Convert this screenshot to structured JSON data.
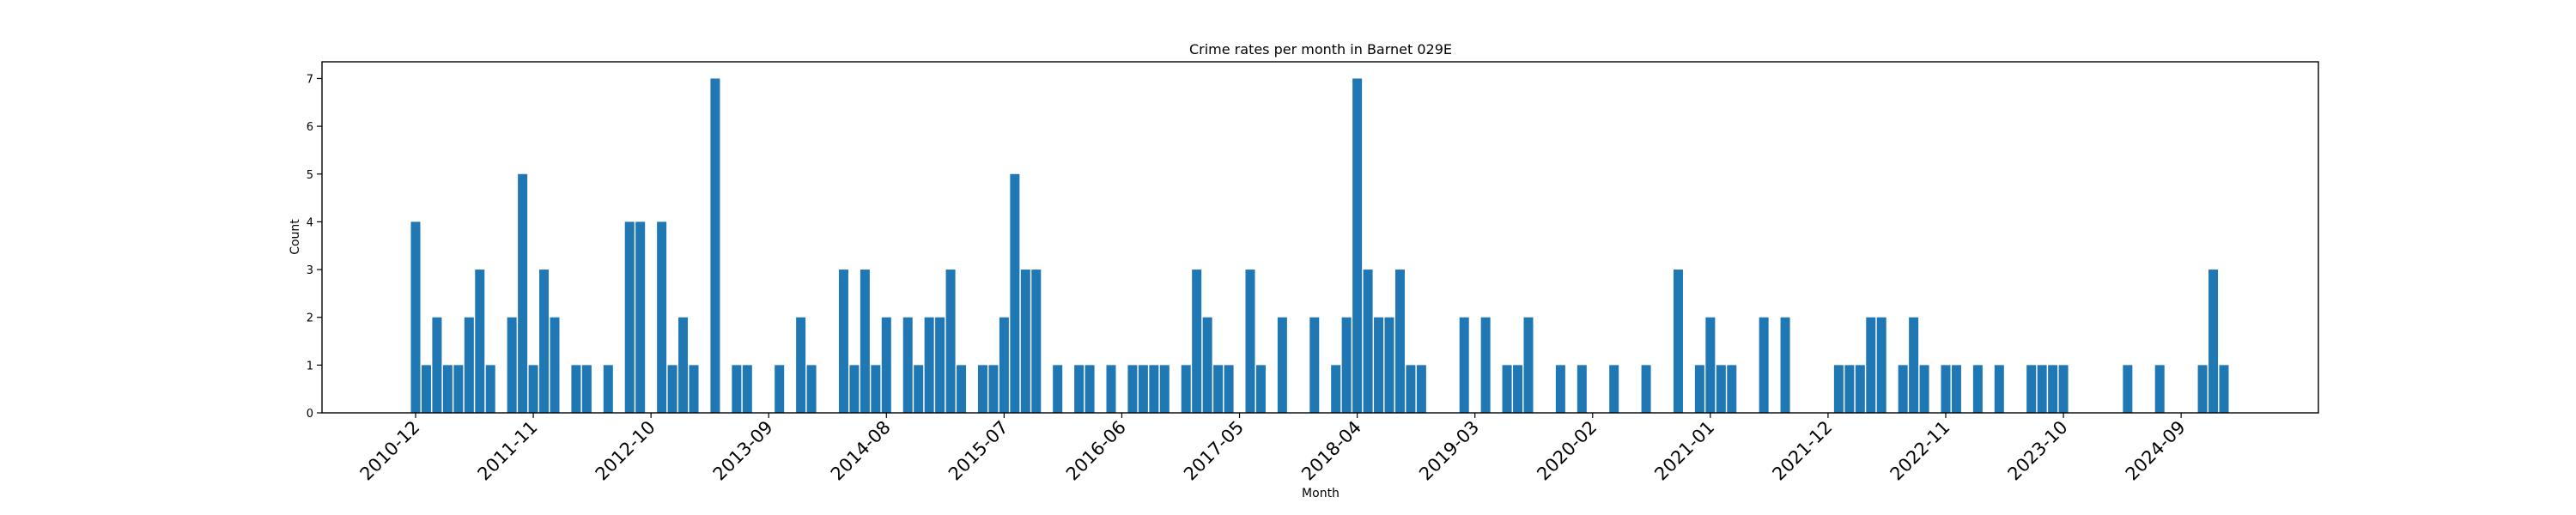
{
  "chart_data": {
    "type": "bar",
    "title": "Crime rates per month in Barnet 029E",
    "xlabel": "Month",
    "ylabel": "Count",
    "ylim": [
      0,
      7.35
    ],
    "yticks": [
      0,
      1,
      2,
      3,
      4,
      5,
      6,
      7
    ],
    "bar_color": "#1f77b4",
    "grid": false,
    "x_tick_labels": [
      "2010-12",
      "2011-11",
      "2012-10",
      "2013-09",
      "2014-08",
      "2015-07",
      "2016-06",
      "2017-05",
      "2018-04",
      "2019-03",
      "2020-02",
      "2021-01",
      "2021-12",
      "2022-11",
      "2023-10",
      "2024-09"
    ],
    "categories": [
      "2010-12",
      "2011-01",
      "2011-02",
      "2011-03",
      "2011-04",
      "2011-05",
      "2011-06",
      "2011-07",
      "2011-09",
      "2011-10",
      "2011-11",
      "2011-12",
      "2012-01",
      "2012-03",
      "2012-04",
      "2012-06",
      "2012-08",
      "2012-09",
      "2012-11",
      "2012-12",
      "2013-01",
      "2013-02",
      "2013-04",
      "2013-06",
      "2013-07",
      "2013-10",
      "2013-12",
      "2014-01",
      "2014-04",
      "2014-05",
      "2014-06",
      "2014-07",
      "2014-08",
      "2014-10",
      "2014-11",
      "2014-12",
      "2015-01",
      "2015-02",
      "2015-03",
      "2015-05",
      "2015-06",
      "2015-07",
      "2015-08",
      "2015-09",
      "2015-10",
      "2015-12",
      "2016-02",
      "2016-03",
      "2016-05",
      "2016-07",
      "2016-08",
      "2016-09",
      "2016-10",
      "2016-12",
      "2017-01",
      "2017-02",
      "2017-03",
      "2017-04",
      "2017-06",
      "2017-07",
      "2017-09",
      "2017-12",
      "2018-02",
      "2018-03",
      "2018-04",
      "2018-05",
      "2018-06",
      "2018-07",
      "2018-08",
      "2018-09",
      "2018-10",
      "2019-02",
      "2019-04",
      "2019-06",
      "2019-07",
      "2019-08",
      "2019-11",
      "2020-01",
      "2020-04",
      "2020-07",
      "2020-10",
      "2020-12",
      "2021-01",
      "2021-02",
      "2021-03",
      "2021-06",
      "2021-08",
      "2022-01",
      "2022-02",
      "2022-03",
      "2022-04",
      "2022-05",
      "2022-07",
      "2022-08",
      "2022-09",
      "2022-11",
      "2022-12",
      "2023-02",
      "2023-04",
      "2023-07",
      "2023-08",
      "2023-09",
      "2023-10",
      "2024-04",
      "2024-07",
      "2024-11",
      "2024-12",
      "2025-01"
    ],
    "values": [
      4,
      1,
      2,
      1,
      1,
      2,
      3,
      1,
      2,
      5,
      1,
      3,
      2,
      1,
      1,
      1,
      4,
      4,
      4,
      1,
      2,
      1,
      7,
      1,
      1,
      1,
      2,
      1,
      3,
      1,
      3,
      1,
      2,
      2,
      1,
      2,
      2,
      3,
      1,
      1,
      1,
      2,
      5,
      3,
      3,
      1,
      1,
      1,
      1,
      1,
      1,
      1,
      1,
      1,
      3,
      2,
      1,
      1,
      3,
      1,
      2,
      2,
      1,
      2,
      7,
      3,
      2,
      2,
      3,
      1,
      1,
      2,
      2,
      1,
      1,
      2,
      1,
      1,
      1,
      1,
      3,
      1,
      2,
      1,
      1,
      2,
      2,
      1,
      1,
      1,
      2,
      2,
      1,
      2,
      1,
      1,
      1,
      1,
      1,
      1,
      1,
      1,
      1,
      1,
      1,
      1,
      3,
      1
    ]
  }
}
